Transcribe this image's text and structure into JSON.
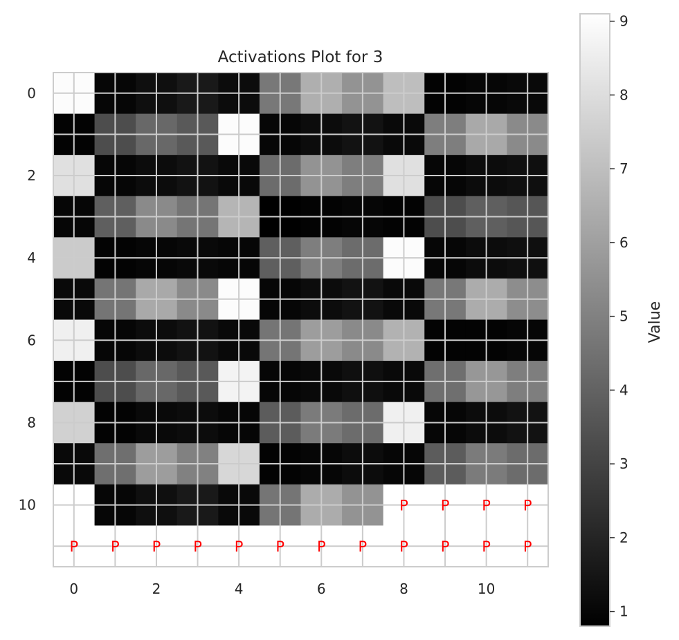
{
  "chart_data": {
    "type": "heatmap",
    "title": "Activations Plot for 3",
    "colormap": "gray",
    "grid": true,
    "x_ticks": [
      "0",
      "2",
      "4",
      "6",
      "8",
      "10"
    ],
    "y_ticks": [
      "0",
      "2",
      "4",
      "6",
      "8",
      "10"
    ],
    "values": [
      [
        9.0,
        1.0,
        1.3,
        1.6,
        1.2,
        4.7,
        6.5,
        5.6,
        7.0,
        0.9,
        1.0,
        1.1
      ],
      [
        0.9,
        3.3,
        4.2,
        3.7,
        9.0,
        1.0,
        1.2,
        1.4,
        1.1,
        4.9,
        6.3,
        5.3
      ],
      [
        8.1,
        1.0,
        1.2,
        1.4,
        1.1,
        4.3,
        5.6,
        4.9,
        8.1,
        1.0,
        1.2,
        1.3
      ],
      [
        1.0,
        3.9,
        5.3,
        4.6,
        6.7,
        0.8,
        0.9,
        1.0,
        0.9,
        3.3,
        3.9,
        3.6
      ],
      [
        7.4,
        0.9,
        1.0,
        1.1,
        1.0,
        3.9,
        4.9,
        4.3,
        9.0,
        1.0,
        1.2,
        1.3
      ],
      [
        1.1,
        4.6,
        6.3,
        5.3,
        9.0,
        1.0,
        1.2,
        1.4,
        1.1,
        4.7,
        6.4,
        5.4
      ],
      [
        8.6,
        1.0,
        1.2,
        1.4,
        1.1,
        4.6,
        5.9,
        5.3,
        6.6,
        0.9,
        0.9,
        1.0
      ],
      [
        0.9,
        3.3,
        4.2,
        3.7,
        8.7,
        1.0,
        1.1,
        1.3,
        1.1,
        4.4,
        5.7,
        4.9
      ],
      [
        7.6,
        0.9,
        1.1,
        1.2,
        1.0,
        3.8,
        4.8,
        4.3,
        8.6,
        1.0,
        1.2,
        1.4
      ],
      [
        1.1,
        4.4,
        5.9,
        5.0,
        7.8,
        0.9,
        1.0,
        1.2,
        1.0,
        3.8,
        4.8,
        4.3
      ],
      [
        null,
        1.0,
        1.3,
        1.6,
        1.1,
        4.6,
        6.4,
        5.6,
        null,
        null,
        null,
        null
      ],
      [
        null,
        null,
        null,
        null,
        null,
        null,
        null,
        null,
        null,
        null,
        null,
        null
      ]
    ],
    "pad_marker": "P",
    "pad_cells": [
      [
        10,
        8
      ],
      [
        10,
        9
      ],
      [
        10,
        10
      ],
      [
        10,
        11
      ],
      [
        11,
        0
      ],
      [
        11,
        1
      ],
      [
        11,
        2
      ],
      [
        11,
        3
      ],
      [
        11,
        4
      ],
      [
        11,
        5
      ],
      [
        11,
        6
      ],
      [
        11,
        7
      ],
      [
        11,
        8
      ],
      [
        11,
        9
      ],
      [
        11,
        10
      ],
      [
        11,
        11
      ]
    ],
    "colorbar": {
      "label": "Value",
      "range": [
        0.8,
        9.1
      ],
      "ticks": [
        "1",
        "2",
        "3",
        "4",
        "5",
        "6",
        "7",
        "8",
        "9"
      ]
    }
  }
}
